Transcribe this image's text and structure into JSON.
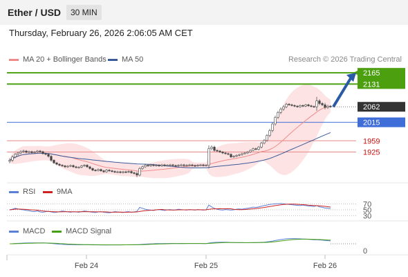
{
  "header": {
    "symbol": "Ether / USD",
    "timeframe": "30 MIN"
  },
  "datetime": "Thursday, February 26, 2026 2:06:05 AM CET",
  "legend": {
    "ma20_label": "MA 20 + Bollinger Bands",
    "ma50_label": "MA 50",
    "rsi_label": "RSI",
    "rsi_ma_label": "9MA",
    "macd_label": "MACD",
    "macd_signal_label": "MACD Signal"
  },
  "credit": "Research © 2026 Trading Central",
  "colors": {
    "ma20": "#f08a8a",
    "ma50": "#3a5a9a",
    "bollinger_fill": "#fde0e0",
    "resistance": "#4ca010",
    "support": "#e88888",
    "pivot": "#3f6ed8",
    "last": "#333333",
    "rsi": "#5a7fd6",
    "rsi_ma": "#cc2222",
    "macd": "#5a7fd6",
    "macd_signal": "#44a010",
    "arrow": "#2a5aa6"
  },
  "chart_data": [
    {
      "type": "candlestick",
      "ylim": [
        1840,
        2180
      ],
      "levels": [
        {
          "label": "2165",
          "value": 2165,
          "kind": "resistance"
        },
        {
          "label": "2131",
          "value": 2131,
          "kind": "resistance"
        },
        {
          "label": "2062",
          "value": 2062,
          "kind": "last"
        },
        {
          "label": "2015",
          "value": 2015,
          "kind": "pivot"
        },
        {
          "label": "1959",
          "value": 1959,
          "kind": "support"
        },
        {
          "label": "1925",
          "value": 1925,
          "kind": "support"
        }
      ],
      "close": [
        1900,
        1910,
        1918,
        1922,
        1926,
        1928,
        1924,
        1926,
        1923,
        1925,
        1928,
        1926,
        1920,
        1918,
        1912,
        1900,
        1892,
        1888,
        1885,
        1883,
        1880,
        1882,
        1884,
        1880,
        1878,
        1879,
        1883,
        1885,
        1880,
        1875,
        1870,
        1869,
        1872,
        1868,
        1865,
        1870,
        1868,
        1866,
        1864,
        1865,
        1863,
        1865,
        1864,
        1866,
        1862,
        1860,
        1855,
        1875,
        1880,
        1885,
        1883,
        1886,
        1884,
        1885,
        1883,
        1886,
        1884,
        1885,
        1886,
        1884,
        1883,
        1885,
        1886,
        1884,
        1885,
        1886,
        1884,
        1883,
        1885,
        1886,
        1884,
        1885,
        1935,
        1940,
        1930,
        1928,
        1925,
        1922,
        1920,
        1918,
        1910,
        1912,
        1915,
        1917,
        1920,
        1922,
        1925,
        1930,
        1935,
        1933,
        1940,
        1952,
        1960,
        1975,
        1990,
        2010,
        2030,
        2045,
        2055,
        2062,
        2070,
        2068,
        2066,
        2064,
        2062,
        2066,
        2064,
        2068,
        2065,
        2063,
        2062,
        2080,
        2072,
        2068,
        2060,
        2064,
        2062
      ],
      "wick": [
        12,
        10,
        8,
        8,
        8,
        8,
        6,
        6,
        6,
        6,
        6,
        6,
        6,
        6,
        8,
        8,
        6,
        6,
        6,
        6,
        6,
        6,
        6,
        6,
        6,
        6,
        6,
        6,
        6,
        6,
        6,
        6,
        6,
        6,
        6,
        6,
        6,
        6,
        6,
        6,
        6,
        6,
        6,
        6,
        6,
        6,
        12,
        8,
        8,
        6,
        6,
        6,
        6,
        6,
        6,
        6,
        6,
        6,
        6,
        6,
        6,
        6,
        6,
        6,
        6,
        6,
        6,
        6,
        6,
        6,
        6,
        6,
        20,
        10,
        8,
        6,
        6,
        6,
        6,
        6,
        6,
        6,
        6,
        6,
        6,
        6,
        6,
        6,
        6,
        6,
        6,
        8,
        8,
        8,
        10,
        10,
        10,
        10,
        10,
        10,
        8,
        6,
        6,
        6,
        6,
        6,
        6,
        6,
        6,
        6,
        6,
        24,
        10,
        8,
        12,
        8,
        6
      ],
      "x_ticks": [
        "Feb 24",
        "Feb 25",
        "Feb 26"
      ]
    },
    {
      "type": "line",
      "name": "RSI",
      "y_ticks": [
        "70",
        "50",
        "30"
      ],
      "values": [
        50,
        52,
        55,
        53,
        51,
        50,
        48,
        47,
        45,
        44,
        46,
        43,
        42,
        44,
        45,
        43,
        41,
        42,
        44,
        46,
        45,
        43,
        42,
        44,
        43,
        42,
        44,
        46,
        45,
        43,
        42,
        41,
        43,
        44,
        42,
        41,
        40,
        42,
        44,
        43,
        42,
        41,
        43,
        44,
        42,
        43,
        45,
        58,
        55,
        52,
        50,
        49,
        48,
        50,
        51,
        49,
        48,
        50,
        51,
        49,
        50,
        52,
        51,
        50,
        49,
        51,
        50,
        49,
        51,
        50,
        49,
        50,
        66,
        60,
        55,
        52,
        50,
        49,
        51,
        50,
        49,
        50,
        52,
        53,
        52,
        54,
        55,
        57,
        59,
        58,
        60,
        62,
        64,
        66,
        68,
        69,
        70,
        70,
        71,
        70,
        69,
        68,
        67,
        66,
        65,
        64,
        66,
        64,
        63,
        62,
        61,
        64,
        60,
        58,
        56,
        55,
        54
      ]
    },
    {
      "type": "line",
      "name": "MACD",
      "y_ticks": [
        "0"
      ]
    }
  ]
}
